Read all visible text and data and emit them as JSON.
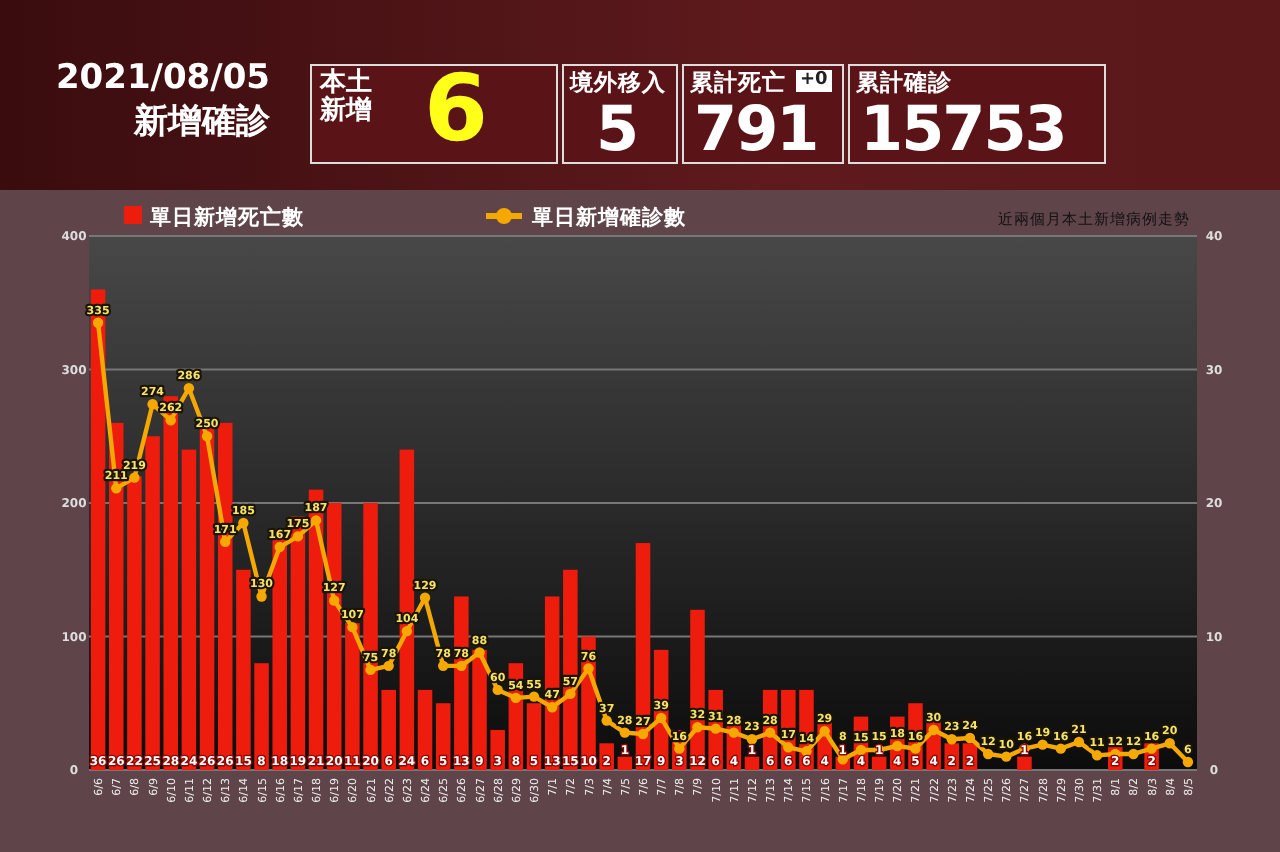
{
  "chart_data": {
    "type": "bar",
    "title": "2021/08/05",
    "subtitle": "近兩個月本土新增病例走勢",
    "annotations": [
      "新增確診",
      "本土新增",
      "6",
      "境外移入",
      "5",
      "累計死亡",
      "+0",
      "791",
      "累計確診",
      "15753"
    ],
    "categories": [
      "6/6",
      "6/7",
      "6/8",
      "6/9",
      "6/10",
      "6/11",
      "6/12",
      "6/13",
      "6/14",
      "6/15",
      "6/16",
      "6/17",
      "6/18",
      "6/19",
      "6/20",
      "6/21",
      "6/22",
      "6/23",
      "6/24",
      "6/25",
      "6/26",
      "6/27",
      "6/28",
      "6/29",
      "6/30",
      "7/1",
      "7/2",
      "7/3",
      "7/4",
      "7/5",
      "7/6",
      "7/7",
      "7/8",
      "7/9",
      "7/10",
      "7/11",
      "7/12",
      "7/13",
      "7/14",
      "7/15",
      "7/16",
      "7/17",
      "7/18",
      "7/19",
      "7/20",
      "7/21",
      "7/22",
      "7/23",
      "7/24",
      "7/25",
      "7/26",
      "7/27",
      "7/28",
      "7/29",
      "7/30",
      "7/31",
      "8/1",
      "8/2",
      "8/3",
      "8/4",
      "8/5"
    ],
    "series": [
      {
        "name": "單日新增死亡數",
        "type": "bar",
        "axis": "y2",
        "color": "#ee1c0c",
        "values": [
          36,
          26,
          22,
          25,
          28,
          24,
          26,
          26,
          15,
          8,
          18,
          19,
          21,
          20,
          11,
          20,
          6,
          24,
          6,
          5,
          13,
          9,
          3,
          8,
          5,
          13,
          15,
          10,
          2,
          1,
          17,
          9,
          3,
          12,
          6,
          4,
          1,
          6,
          6,
          6,
          4,
          1,
          4,
          1,
          4,
          5,
          4,
          2,
          2,
          0,
          0,
          1,
          0,
          0,
          0,
          0,
          2,
          0,
          2,
          0,
          0
        ],
        "value_labels": [
          "36",
          "26",
          "22",
          "25",
          "28",
          "24",
          "26",
          "26",
          "15",
          "8",
          "18",
          "19",
          "21",
          "20",
          "11",
          "20",
          "6",
          "24",
          "6",
          "5",
          "13",
          "9",
          "3",
          "8",
          "5",
          "13",
          "15",
          "10",
          "2",
          "1",
          "17",
          "9",
          "3",
          "12",
          "6",
          "4",
          "1",
          "6",
          "6",
          "6",
          "4",
          "1",
          "4",
          "1",
          "4",
          "5",
          "4",
          "2",
          "2",
          null,
          null,
          "1",
          null,
          null,
          null,
          null,
          "2",
          null,
          "2",
          null,
          null
        ]
      },
      {
        "name": "單日新增確診數",
        "type": "line",
        "color": "#f5a800",
        "values": [
          335,
          211,
          219,
          274,
          262,
          286,
          250,
          171,
          185,
          130,
          167,
          175,
          187,
          127,
          107,
          75,
          78,
          104,
          129,
          78,
          78,
          88,
          60,
          54,
          55,
          47,
          57,
          76,
          37,
          28,
          27,
          39,
          16,
          32,
          31,
          28,
          23,
          28,
          17,
          14,
          29,
          8,
          15,
          15,
          18,
          16,
          30,
          23,
          24,
          12,
          10,
          16,
          19,
          16,
          21,
          11,
          12,
          12,
          16,
          20,
          6
        ],
        "value_labels": [
          "335",
          "211",
          "219",
          "274",
          "262",
          "286",
          "250",
          "171",
          "185",
          "130",
          "167",
          "175",
          "187",
          "127",
          "107",
          "75",
          "78",
          "104",
          "129",
          "78",
          "78",
          "88",
          "60",
          "54",
          "55",
          "47",
          "57",
          "76",
          "37",
          "28",
          "27",
          "39",
          "16",
          "32",
          "31",
          "28",
          "23",
          "28",
          "17",
          "14",
          "29",
          "8",
          "15",
          "15",
          "18",
          "16",
          "30",
          "23",
          "24",
          "12",
          "10",
          "16",
          "19",
          "16",
          "21",
          "11",
          "12",
          "12",
          "16",
          "20",
          "6"
        ]
      }
    ],
    "ylim": [
      0,
      400
    ],
    "yticks": [
      0,
      100,
      200,
      300,
      400
    ],
    "y2lim": [
      0,
      40
    ],
    "y2ticks": [
      0,
      10,
      20,
      30,
      40
    ],
    "grid": "y",
    "legend": "top left",
    "marker": "circle"
  }
}
